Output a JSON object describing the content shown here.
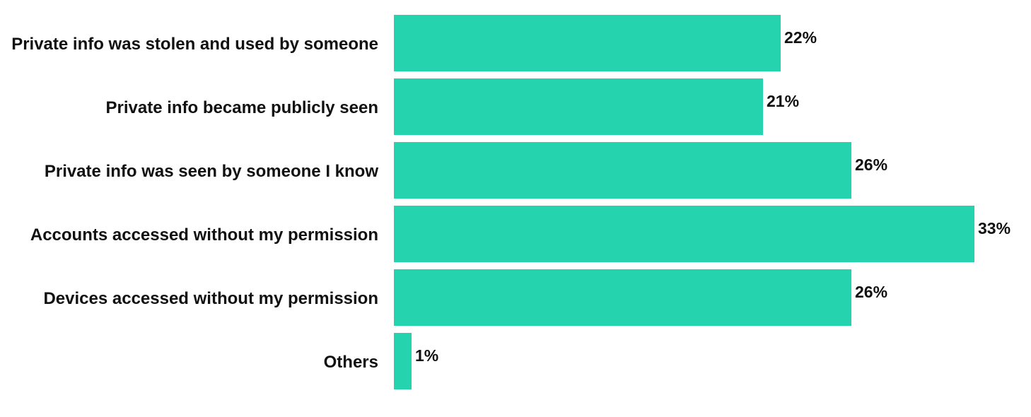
{
  "chart_data": {
    "type": "bar",
    "orientation": "horizontal",
    "categories": [
      "Private info was stolen and used by someone",
      "Private info became publicly seen",
      "Private info was seen by someone I know",
      "Accounts accessed without my permission",
      "Devices accessed without my permission",
      "Others"
    ],
    "values": [
      22,
      21,
      26,
      33,
      26,
      1
    ],
    "value_labels": [
      "22%",
      "21%",
      "26%",
      "33%",
      "26%",
      "1%"
    ],
    "unit": "%",
    "xlim": [
      0,
      33
    ],
    "grid": false,
    "legend": "none",
    "bar_color": "#26D3AF"
  }
}
